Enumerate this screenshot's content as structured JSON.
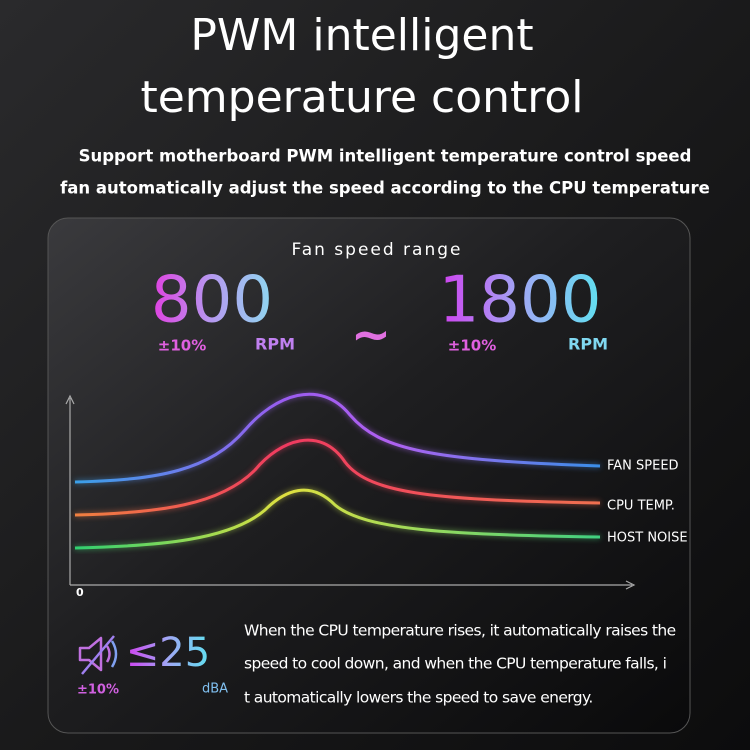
{
  "header": {
    "title_lines": [
      "PWM intelligent",
      "temperature control"
    ],
    "subtitle_lines": [
      "Support motherboard PWM intelligent temperature control speed",
      "fan automatically adjust the speed according to the CPU temperature"
    ]
  },
  "panel": {
    "heading": "Fan speed range",
    "min": {
      "value": "800",
      "tolerance": "±10%",
      "unit": "RPM"
    },
    "separator": "~",
    "max": {
      "value": "1800",
      "tolerance": "±10%",
      "unit": "RPM"
    },
    "curve_labels": [
      "FAN SPEED",
      "CPU TEMP.",
      "HOST NOISE"
    ],
    "axis_origin": "0",
    "noise": {
      "value": "≤25",
      "tolerance": "±10%",
      "unit": "dBA"
    },
    "description_lines": [
      "When the CPU temperature rises, it automatically raises the",
      "speed to cool down, and when the CPU temperature falls, i",
      "t automatically lowers the speed to save energy."
    ]
  }
}
